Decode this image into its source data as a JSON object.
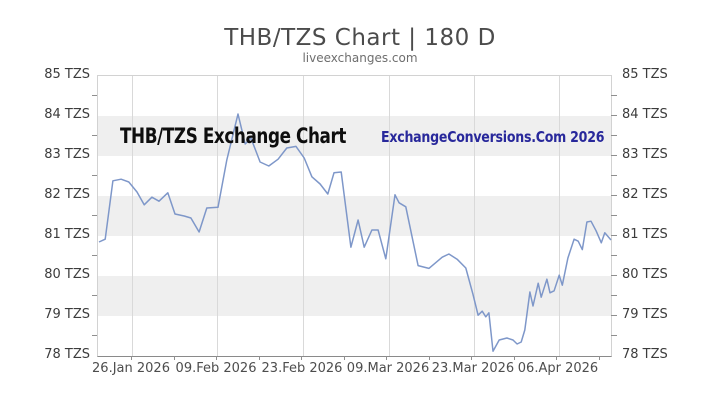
{
  "header": {
    "title": "THB/TZS Chart | 180 D",
    "subtitle": "liveexchanges.com"
  },
  "watermarks": {
    "left_text": "THB/TZS Exchange Chart",
    "left_color": "#0e0e0e",
    "right_text": "ExchangeConversions.Com 2026",
    "right_color": "#28289b"
  },
  "chart_data": {
    "type": "line",
    "title": "THB/TZS Chart | 180 D",
    "subtitle": "liveexchanges.com",
    "pair": "THB/TZS",
    "period_label": "180 D",
    "unit": "TZS",
    "ylim": [
      78,
      85
    ],
    "y_tick_labels": [
      "85 TZS",
      "84 TZS",
      "83 TZS",
      "82 TZS",
      "81 TZS",
      "80 TZS",
      "79 TZS",
      "78 TZS"
    ],
    "y_tick_values": [
      85,
      84,
      83,
      82,
      81,
      80,
      79,
      78
    ],
    "gray_band_top_values": [
      84,
      82,
      80
    ],
    "x_tick_labels": [
      "26.Jan 2026",
      "09.Feb 2026",
      "23.Feb 2026",
      "09.Mar 2026",
      "23.Mar 2026",
      "06.Apr 2026"
    ],
    "x_tick_pos_pct": [
      6.63,
      23.2,
      39.96,
      56.73,
      73.29,
      89.86
    ],
    "grid": true,
    "legend": "none",
    "line_color": "#7e97c9",
    "band_color": "#efefef",
    "series": [
      {
        "name": "THB/TZS",
        "points_pct_value": [
          [
            0.2,
            80.85
          ],
          [
            1.4,
            80.92
          ],
          [
            2.9,
            82.38
          ],
          [
            4.5,
            82.42
          ],
          [
            6.0,
            82.35
          ],
          [
            7.6,
            82.1
          ],
          [
            9.0,
            81.78
          ],
          [
            10.5,
            81.97
          ],
          [
            11.9,
            81.87
          ],
          [
            13.6,
            82.08
          ],
          [
            15.0,
            81.55
          ],
          [
            16.8,
            81.5
          ],
          [
            18.1,
            81.45
          ],
          [
            19.7,
            81.1
          ],
          [
            21.2,
            81.7
          ],
          [
            23.4,
            81.72
          ],
          [
            25.1,
            82.9
          ],
          [
            27.3,
            84.05
          ],
          [
            28.7,
            83.3
          ],
          [
            29.8,
            83.45
          ],
          [
            31.6,
            82.85
          ],
          [
            33.3,
            82.75
          ],
          [
            35.1,
            82.92
          ],
          [
            36.8,
            83.2
          ],
          [
            38.6,
            83.24
          ],
          [
            40.2,
            82.95
          ],
          [
            41.7,
            82.48
          ],
          [
            43.3,
            82.3
          ],
          [
            44.8,
            82.05
          ],
          [
            46.0,
            82.58
          ],
          [
            47.4,
            82.6
          ],
          [
            49.3,
            80.72
          ],
          [
            50.7,
            81.4
          ],
          [
            51.9,
            80.72
          ],
          [
            53.4,
            81.15
          ],
          [
            54.6,
            81.15
          ],
          [
            56.1,
            80.43
          ],
          [
            57.9,
            82.03
          ],
          [
            58.7,
            81.83
          ],
          [
            60.0,
            81.73
          ],
          [
            62.4,
            80.26
          ],
          [
            64.5,
            80.19
          ],
          [
            67.1,
            80.47
          ],
          [
            68.4,
            80.55
          ],
          [
            70.0,
            80.42
          ],
          [
            71.7,
            80.2
          ],
          [
            73.1,
            79.54
          ],
          [
            74.1,
            79.02
          ],
          [
            74.9,
            79.12
          ],
          [
            75.6,
            78.98
          ],
          [
            76.2,
            79.08
          ],
          [
            77.0,
            78.12
          ],
          [
            78.2,
            78.4
          ],
          [
            79.7,
            78.45
          ],
          [
            80.9,
            78.4
          ],
          [
            81.7,
            78.3
          ],
          [
            82.5,
            78.35
          ],
          [
            83.2,
            78.65
          ],
          [
            84.2,
            79.6
          ],
          [
            84.8,
            79.25
          ],
          [
            85.8,
            79.82
          ],
          [
            86.4,
            79.47
          ],
          [
            87.5,
            79.92
          ],
          [
            88.1,
            79.58
          ],
          [
            88.9,
            79.63
          ],
          [
            89.9,
            80.02
          ],
          [
            90.5,
            79.77
          ],
          [
            91.6,
            80.45
          ],
          [
            92.8,
            80.92
          ],
          [
            93.6,
            80.87
          ],
          [
            94.4,
            80.66
          ],
          [
            95.3,
            81.35
          ],
          [
            96.1,
            81.37
          ],
          [
            97.1,
            81.13
          ],
          [
            98.1,
            80.83
          ],
          [
            98.8,
            81.08
          ],
          [
            100.0,
            80.9
          ]
        ]
      }
    ]
  }
}
